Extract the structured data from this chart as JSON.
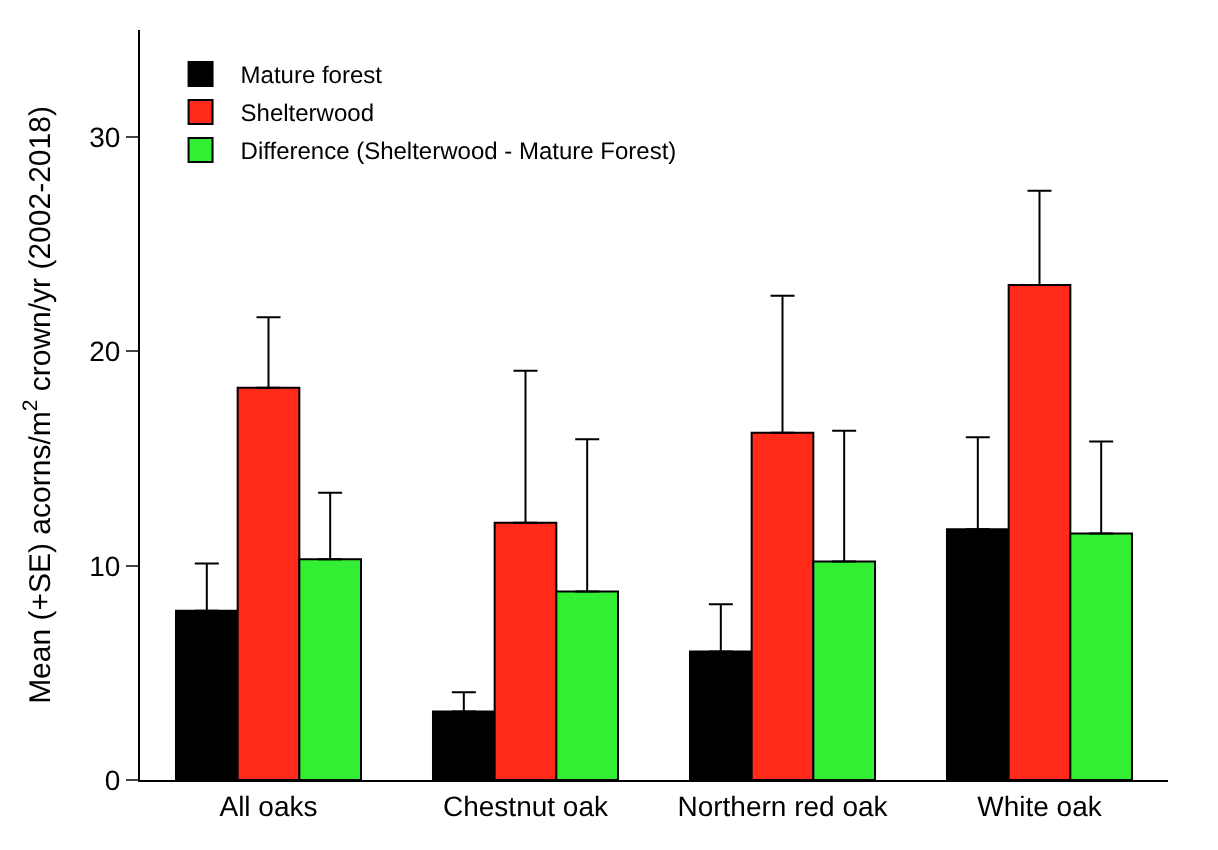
{
  "chart_data": {
    "type": "bar",
    "ylabel": "Mean (+SE) acorns/m$^{2}$ crown/yr (2002-2018)",
    "categories": [
      "All oaks",
      "Chestnut oak",
      "Northern red oak",
      "White oak"
    ],
    "series": [
      {
        "name": "Mature forest",
        "color": "#000000",
        "values": [
          7.9,
          3.2,
          6.0,
          11.7
        ],
        "errors": [
          [
            7.9,
            10.1
          ],
          [
            3.2,
            4.1
          ],
          [
            6.0,
            8.2
          ],
          [
            11.7,
            16.0
          ]
        ]
      },
      {
        "name": "Shelterwood",
        "color": "#ff2a1a",
        "values": [
          18.3,
          12.0,
          16.2,
          23.1
        ],
        "errors": [
          [
            18.3,
            21.6
          ],
          [
            12.0,
            19.1
          ],
          [
            16.2,
            22.6
          ],
          [
            23.1,
            27.5
          ]
        ]
      },
      {
        "name": "Difference (Shelterwood - Mature Forest)",
        "color": "#33ee33",
        "values": [
          10.3,
          8.8,
          10.2,
          11.5
        ],
        "errors": [
          [
            10.3,
            13.4
          ],
          [
            8.8,
            15.9
          ],
          [
            10.2,
            16.3
          ],
          [
            11.5,
            15.8
          ]
        ]
      }
    ],
    "ylim": [
      0,
      35
    ],
    "yticks": [
      0,
      10,
      20,
      30
    ],
    "legend": "top left"
  }
}
